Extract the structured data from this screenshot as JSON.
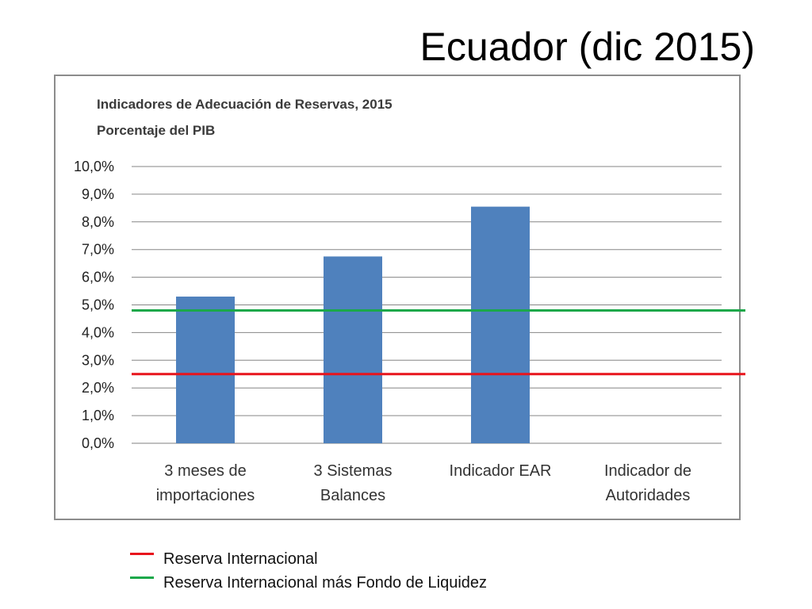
{
  "slide": {
    "title": "Ecuador (dic 2015)"
  },
  "chart_data": {
    "type": "bar",
    "title": "Indicadores de Adecuación de Reservas, 2015",
    "subtitle": "Porcentaje del PIB",
    "categories": [
      [
        "3 meses de",
        "importaciones"
      ],
      [
        "3 Sistemas",
        "Balances"
      ],
      [
        "Indicador EAR"
      ],
      [
        "Indicador de",
        "Autoridades"
      ]
    ],
    "values": [
      5.3,
      6.75,
      8.55,
      null
    ],
    "bar_color": "#4f81bd",
    "ylim": [
      0,
      10
    ],
    "yticks": [
      0,
      1,
      2,
      3,
      4,
      5,
      6,
      7,
      8,
      9,
      10
    ],
    "ytick_labels": [
      "0,0%",
      "1,0%",
      "2,0%",
      "3,0%",
      "4,0%",
      "5,0%",
      "6,0%",
      "7,0%",
      "8,0%",
      "9,0%",
      "10,0%"
    ],
    "grid": true,
    "reference_lines": [
      {
        "name": "Reserva Internacional",
        "value": 2.5,
        "color": "#e8141c"
      },
      {
        "name": "Reserva Internacional más Fondo de Liquidez",
        "value": 4.8,
        "color": "#1ba84a"
      }
    ]
  }
}
